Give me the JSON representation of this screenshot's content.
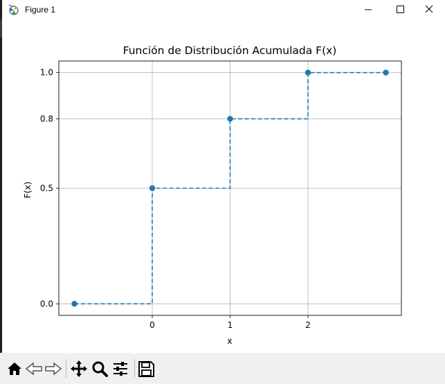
{
  "window": {
    "title": "Figure 1",
    "controls": [
      "minimize",
      "maximize",
      "close"
    ]
  },
  "toolbar": {
    "buttons": [
      {
        "name": "home",
        "icon": "home-icon"
      },
      {
        "name": "back",
        "icon": "back-arrow-icon"
      },
      {
        "name": "forward",
        "icon": "forward-arrow-icon"
      },
      {
        "name": "pan",
        "icon": "move-icon"
      },
      {
        "name": "zoom",
        "icon": "zoom-icon"
      },
      {
        "name": "configure-subplots",
        "icon": "sliders-icon"
      },
      {
        "name": "save",
        "icon": "save-icon"
      }
    ]
  },
  "chart_data": {
    "type": "line",
    "title": "Función de Distribución Acumulada F(x)",
    "xlabel": "x",
    "ylabel": "F(x)",
    "xticks": [
      0,
      1,
      2
    ],
    "yticks": [
      0.0,
      0.5,
      0.8,
      1.0
    ],
    "ytick_labels": [
      "0.0",
      "0.5",
      "0.8",
      "1.0"
    ],
    "xlim": [
      -1.2,
      3.2
    ],
    "ylim": [
      -0.05,
      1.05
    ],
    "grid": true,
    "step": "post",
    "line_style": "dashed",
    "marker": "circle",
    "color": "#1f77b4",
    "series": [
      {
        "x": [
          -1,
          0,
          1,
          2,
          3
        ],
        "y": [
          0.0,
          0.5,
          0.8,
          1.0,
          1.0
        ]
      }
    ]
  }
}
